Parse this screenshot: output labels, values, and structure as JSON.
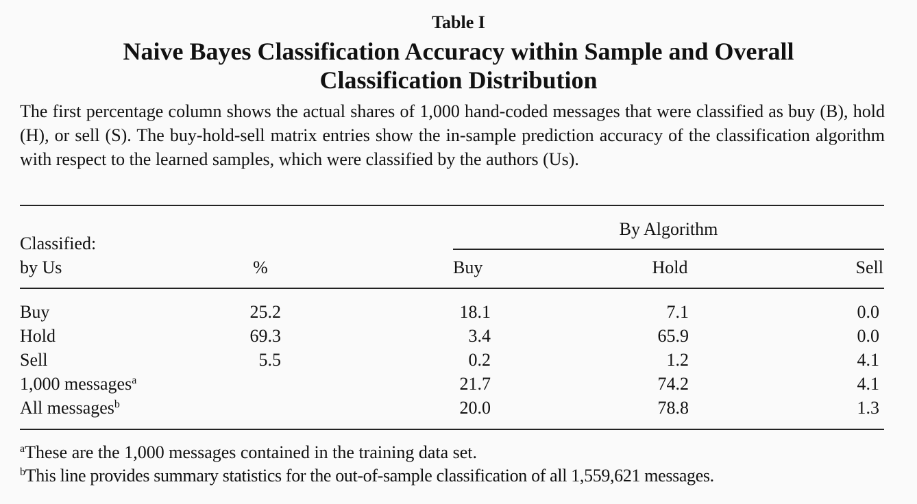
{
  "table_label": "Table I",
  "title_line1": "Naive Bayes Classification Accuracy within Sample and Overall",
  "title_line2": "Classification Distribution",
  "caption": "The first percentage column shows the actual shares of 1,000 hand-coded messages that were classified as buy (B), hold (H), or sell (S). The buy-hold-sell matrix entries show the in-sample prediction accuracy of the classification algorithm with respect to the learned samples, which were classified by the authors (Us).",
  "header": {
    "group_label": "By Algorithm",
    "row_label_line1": "Classified:",
    "row_label_line2": "by Us",
    "pct": "%",
    "buy": "Buy",
    "hold": "Hold",
    "sell": "Sell"
  },
  "rows": [
    {
      "label": "Buy",
      "sup": "",
      "pct": "25.2",
      "buy": "18.1",
      "hold": "7.1",
      "sell": "0.0"
    },
    {
      "label": "Hold",
      "sup": "",
      "pct": "69.3",
      "buy": "3.4",
      "hold": "65.9",
      "sell": "0.0"
    },
    {
      "label": "Sell",
      "sup": "",
      "pct": "5.5",
      "buy": "0.2",
      "hold": "1.2",
      "sell": "4.1"
    },
    {
      "label": "1,000 messages",
      "sup": "a",
      "pct": "",
      "buy": "21.7",
      "hold": "74.2",
      "sell": "4.1"
    },
    {
      "label": "All messages",
      "sup": "b",
      "pct": "",
      "buy": "20.0",
      "hold": "78.8",
      "sell": "1.3"
    }
  ],
  "footnotes": [
    {
      "mark": "a",
      "text": "These are the 1,000 messages contained in the training data set."
    },
    {
      "mark": "b",
      "text": "This line provides summary statistics for the out-of-sample classification of all 1,559,621 messages."
    }
  ]
}
